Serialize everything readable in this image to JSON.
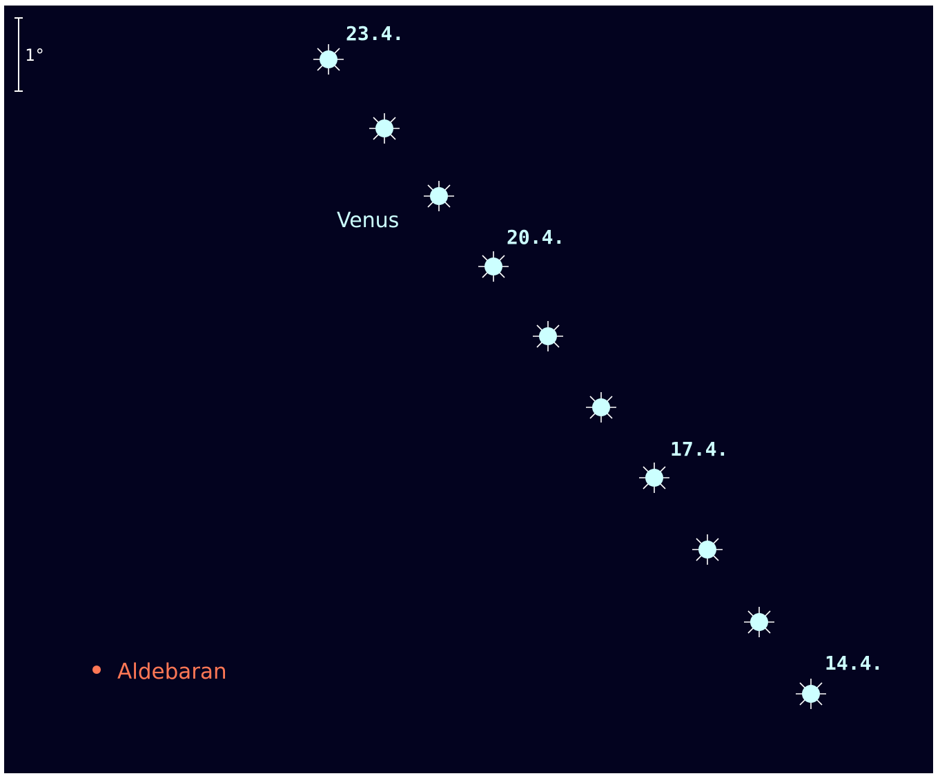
{
  "scale_bar": {
    "label": "1°"
  },
  "planet": {
    "name": "Venus",
    "color": "#ccffff",
    "date_labels": [
      "23.4.",
      "20.4.",
      "17.4.",
      "14.4."
    ],
    "positions_count": 10
  },
  "star": {
    "name": "Aldebaran",
    "color": "#ff7755"
  },
  "background_color": "#03031f"
}
